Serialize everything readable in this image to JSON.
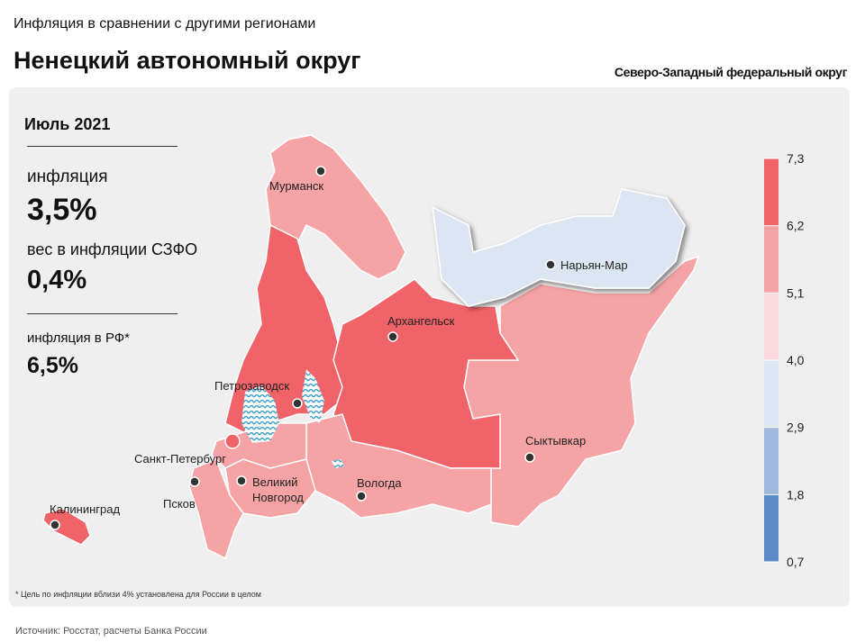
{
  "header": {
    "subtitle": "Инфляция в сравнении с другими регионами",
    "title": "Ненецкий автономный округ",
    "district": "Северо-Западный федеральный округ"
  },
  "panel": {
    "period": "Июль 2021",
    "inflation_label": "инфляция",
    "inflation_value": "3,5%",
    "weight_label": "вес в инфляции СЗФО",
    "weight_value": "0,4%",
    "rf_label": "инфляция в РФ*",
    "rf_value": "6,5%"
  },
  "map": {
    "cities": [
      "Мурманск",
      "Нарьян-Мар",
      "Архангельск",
      "Петрозаводск",
      "Санкт-Петербург",
      "Великий Новгород",
      "Псков",
      "Вологда",
      "Сыктывкар",
      "Калининград"
    ]
  },
  "legend": {
    "colors": [
      "#f06469",
      "#f5a3a5",
      "#fadadd",
      "#dce6f2",
      "#9fb8dc",
      "#5b8ac4"
    ],
    "ticks": [
      {
        "value": 7.3,
        "label": "7,3"
      },
      {
        "value": 6.2,
        "label": "6,2"
      },
      {
        "value": 5.1,
        "label": "5,1"
      },
      {
        "value": 4.0,
        "label": "4,0"
      },
      {
        "value": 2.9,
        "label": "2,9"
      },
      {
        "value": 1.8,
        "label": "1,8"
      },
      {
        "value": 0.7,
        "label": "0,7"
      }
    ]
  },
  "footnote": "* Цель по инфляции вблизи 4% установлена для России в целом",
  "source": "Источник: Росстат, расчеты Банка России"
}
